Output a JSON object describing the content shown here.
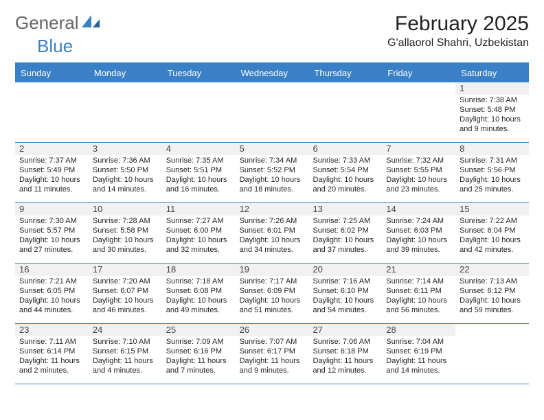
{
  "colors": {
    "brand_blue": "#3a80c6",
    "text": "#242424",
    "logo_gray": "#666666",
    "daynum_bg": "#f1f1f1",
    "white": "#ffffff"
  },
  "logo": {
    "text_1": "General",
    "text_2": "Blue"
  },
  "title": {
    "month": "February 2025",
    "location": "G'allaorol Shahri, Uzbekistan"
  },
  "day_headers": [
    "Sunday",
    "Monday",
    "Tuesday",
    "Wednesday",
    "Thursday",
    "Friday",
    "Saturday"
  ],
  "layout": {
    "type": "calendar",
    "columns": 7,
    "rows": 5,
    "cell_font_size_pt": 11,
    "daynum_font_size_pt": 13,
    "header_font_size_pt": 13,
    "month_font_size_pt": 30,
    "location_font_size_pt": 16,
    "border_color": "#3a80c6"
  },
  "weeks": [
    [
      {
        "blank": true
      },
      {
        "blank": true
      },
      {
        "blank": true
      },
      {
        "blank": true
      },
      {
        "blank": true
      },
      {
        "blank": true
      },
      {
        "num": "1",
        "sunrise": "Sunrise: 7:38 AM",
        "sunset": "Sunset: 5:48 PM",
        "daylight": "Daylight: 10 hours and 9 minutes."
      }
    ],
    [
      {
        "num": "2",
        "sunrise": "Sunrise: 7:37 AM",
        "sunset": "Sunset: 5:49 PM",
        "daylight": "Daylight: 10 hours and 11 minutes."
      },
      {
        "num": "3",
        "sunrise": "Sunrise: 7:36 AM",
        "sunset": "Sunset: 5:50 PM",
        "daylight": "Daylight: 10 hours and 14 minutes."
      },
      {
        "num": "4",
        "sunrise": "Sunrise: 7:35 AM",
        "sunset": "Sunset: 5:51 PM",
        "daylight": "Daylight: 10 hours and 16 minutes."
      },
      {
        "num": "5",
        "sunrise": "Sunrise: 7:34 AM",
        "sunset": "Sunset: 5:52 PM",
        "daylight": "Daylight: 10 hours and 18 minutes."
      },
      {
        "num": "6",
        "sunrise": "Sunrise: 7:33 AM",
        "sunset": "Sunset: 5:54 PM",
        "daylight": "Daylight: 10 hours and 20 minutes."
      },
      {
        "num": "7",
        "sunrise": "Sunrise: 7:32 AM",
        "sunset": "Sunset: 5:55 PM",
        "daylight": "Daylight: 10 hours and 23 minutes."
      },
      {
        "num": "8",
        "sunrise": "Sunrise: 7:31 AM",
        "sunset": "Sunset: 5:56 PM",
        "daylight": "Daylight: 10 hours and 25 minutes."
      }
    ],
    [
      {
        "num": "9",
        "sunrise": "Sunrise: 7:30 AM",
        "sunset": "Sunset: 5:57 PM",
        "daylight": "Daylight: 10 hours and 27 minutes."
      },
      {
        "num": "10",
        "sunrise": "Sunrise: 7:28 AM",
        "sunset": "Sunset: 5:58 PM",
        "daylight": "Daylight: 10 hours and 30 minutes."
      },
      {
        "num": "11",
        "sunrise": "Sunrise: 7:27 AM",
        "sunset": "Sunset: 6:00 PM",
        "daylight": "Daylight: 10 hours and 32 minutes."
      },
      {
        "num": "12",
        "sunrise": "Sunrise: 7:26 AM",
        "sunset": "Sunset: 6:01 PM",
        "daylight": "Daylight: 10 hours and 34 minutes."
      },
      {
        "num": "13",
        "sunrise": "Sunrise: 7:25 AM",
        "sunset": "Sunset: 6:02 PM",
        "daylight": "Daylight: 10 hours and 37 minutes."
      },
      {
        "num": "14",
        "sunrise": "Sunrise: 7:24 AM",
        "sunset": "Sunset: 6:03 PM",
        "daylight": "Daylight: 10 hours and 39 minutes."
      },
      {
        "num": "15",
        "sunrise": "Sunrise: 7:22 AM",
        "sunset": "Sunset: 6:04 PM",
        "daylight": "Daylight: 10 hours and 42 minutes."
      }
    ],
    [
      {
        "num": "16",
        "sunrise": "Sunrise: 7:21 AM",
        "sunset": "Sunset: 6:05 PM",
        "daylight": "Daylight: 10 hours and 44 minutes."
      },
      {
        "num": "17",
        "sunrise": "Sunrise: 7:20 AM",
        "sunset": "Sunset: 6:07 PM",
        "daylight": "Daylight: 10 hours and 46 minutes."
      },
      {
        "num": "18",
        "sunrise": "Sunrise: 7:18 AM",
        "sunset": "Sunset: 6:08 PM",
        "daylight": "Daylight: 10 hours and 49 minutes."
      },
      {
        "num": "19",
        "sunrise": "Sunrise: 7:17 AM",
        "sunset": "Sunset: 6:09 PM",
        "daylight": "Daylight: 10 hours and 51 minutes."
      },
      {
        "num": "20",
        "sunrise": "Sunrise: 7:16 AM",
        "sunset": "Sunset: 6:10 PM",
        "daylight": "Daylight: 10 hours and 54 minutes."
      },
      {
        "num": "21",
        "sunrise": "Sunrise: 7:14 AM",
        "sunset": "Sunset: 6:11 PM",
        "daylight": "Daylight: 10 hours and 56 minutes."
      },
      {
        "num": "22",
        "sunrise": "Sunrise: 7:13 AM",
        "sunset": "Sunset: 6:12 PM",
        "daylight": "Daylight: 10 hours and 59 minutes."
      }
    ],
    [
      {
        "num": "23",
        "sunrise": "Sunrise: 7:11 AM",
        "sunset": "Sunset: 6:14 PM",
        "daylight": "Daylight: 11 hours and 2 minutes."
      },
      {
        "num": "24",
        "sunrise": "Sunrise: 7:10 AM",
        "sunset": "Sunset: 6:15 PM",
        "daylight": "Daylight: 11 hours and 4 minutes."
      },
      {
        "num": "25",
        "sunrise": "Sunrise: 7:09 AM",
        "sunset": "Sunset: 6:16 PM",
        "daylight": "Daylight: 11 hours and 7 minutes."
      },
      {
        "num": "26",
        "sunrise": "Sunrise: 7:07 AM",
        "sunset": "Sunset: 6:17 PM",
        "daylight": "Daylight: 11 hours and 9 minutes."
      },
      {
        "num": "27",
        "sunrise": "Sunrise: 7:06 AM",
        "sunset": "Sunset: 6:18 PM",
        "daylight": "Daylight: 11 hours and 12 minutes."
      },
      {
        "num": "28",
        "sunrise": "Sunrise: 7:04 AM",
        "sunset": "Sunset: 6:19 PM",
        "daylight": "Daylight: 11 hours and 14 minutes."
      },
      {
        "blank": true
      }
    ]
  ]
}
